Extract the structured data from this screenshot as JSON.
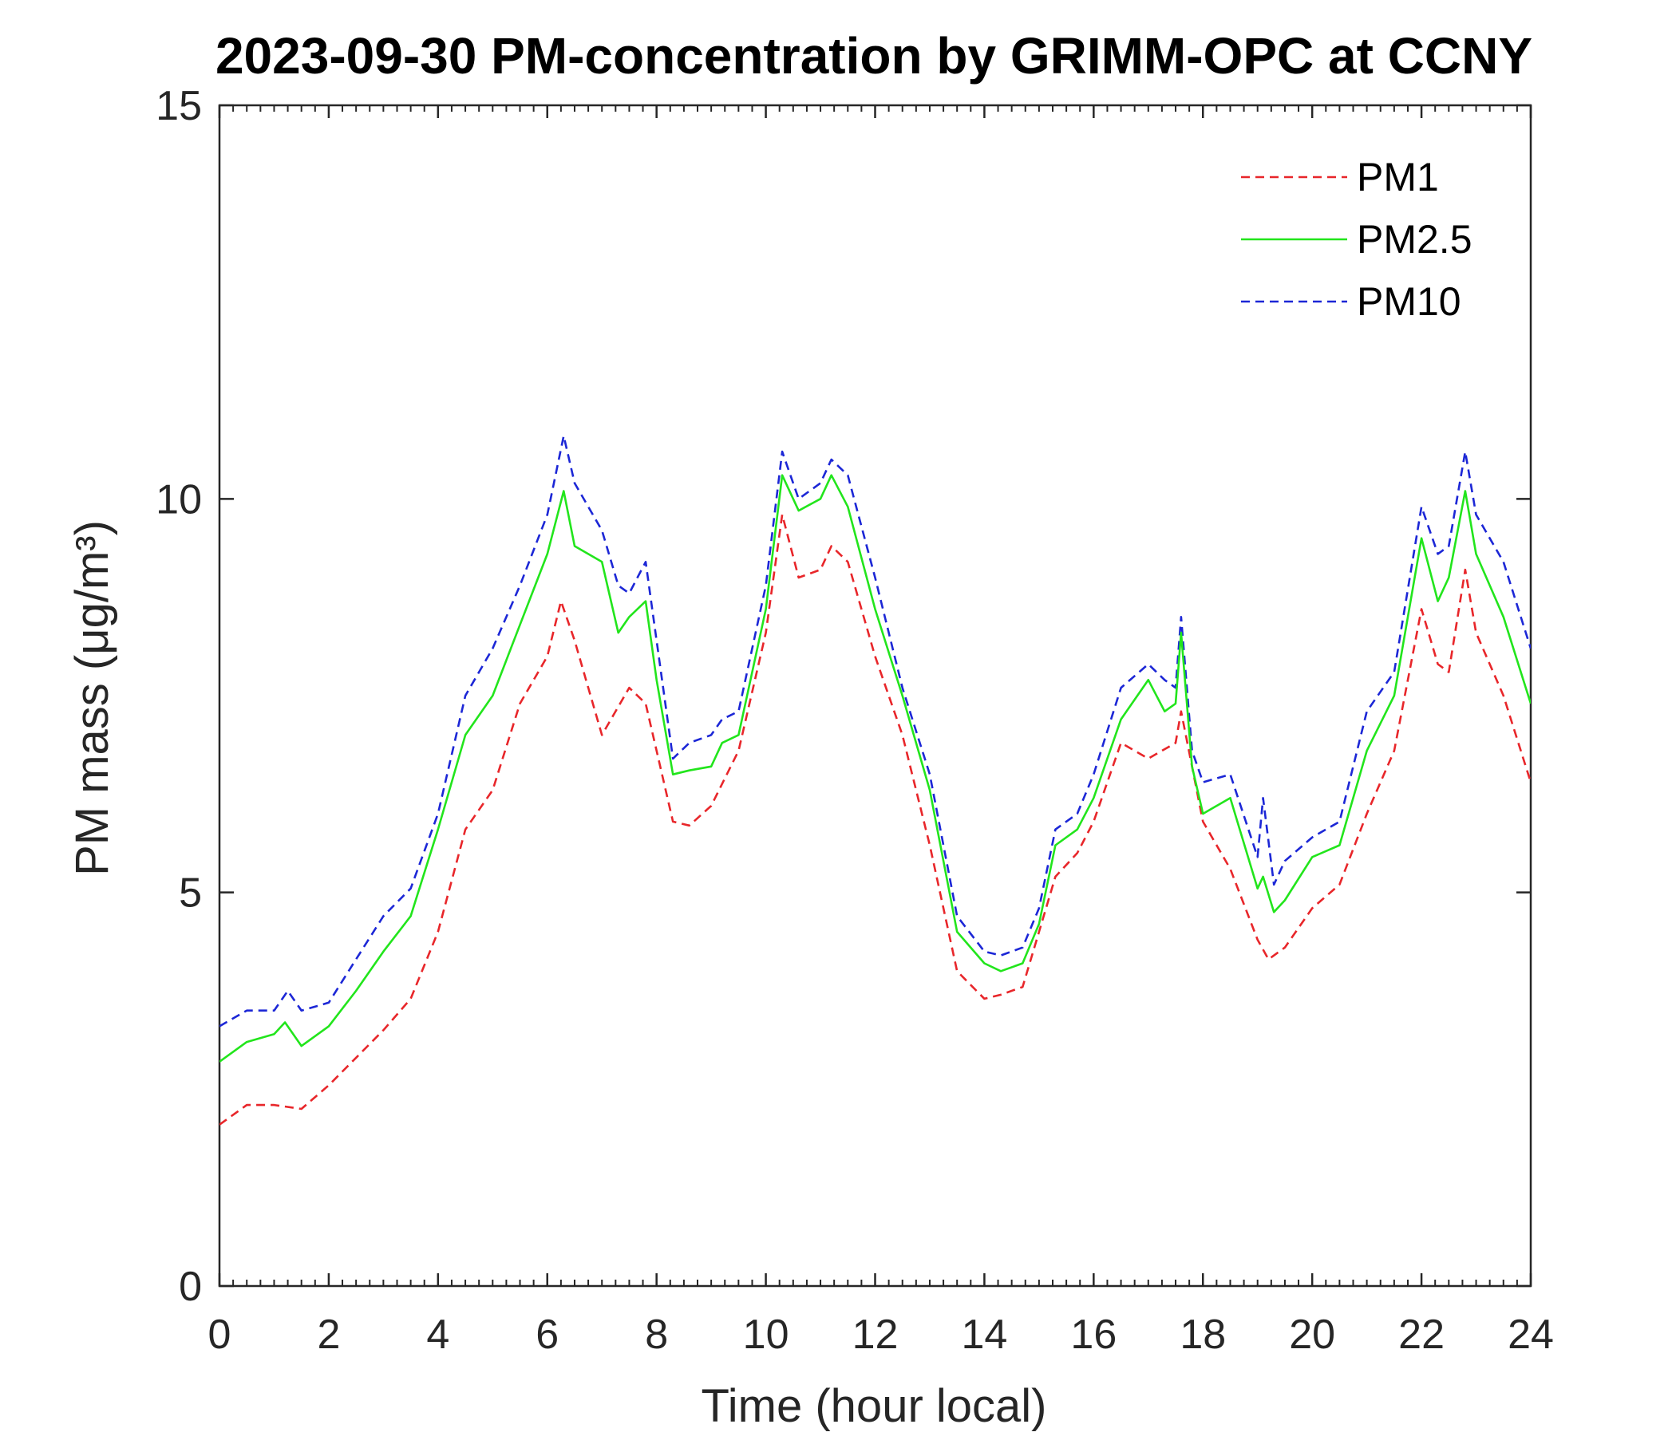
{
  "chart_data": {
    "type": "line",
    "title": "2023-09-30 PM-concentration by GRIMM-OPC at CCNY",
    "xlabel": "Time (hour local)",
    "ylabel": "PM mass (μg/m³)",
    "xlim": [
      0,
      24
    ],
    "ylim": [
      0,
      15
    ],
    "xticks": [
      0,
      2,
      4,
      6,
      8,
      10,
      12,
      14,
      16,
      18,
      20,
      22,
      24
    ],
    "yticks": [
      0,
      5,
      10,
      15
    ],
    "x_minor_step": 0.25,
    "grid": false,
    "legend_position": "top-right",
    "series": [
      {
        "name": "PM1",
        "color": "#e8262a",
        "dash": "dashed",
        "x": [
          0,
          0.5,
          1,
          1.5,
          2,
          2.5,
          3,
          3.5,
          4,
          4.5,
          5,
          5.5,
          6,
          6.25,
          6.5,
          7,
          7.5,
          7.8,
          8,
          8.3,
          8.6,
          9,
          9.5,
          10,
          10.3,
          10.6,
          11,
          11.2,
          11.5,
          12,
          12.5,
          13,
          13.5,
          14,
          14.3,
          14.7,
          15,
          15.3,
          15.7,
          16,
          16.5,
          17,
          17.5,
          17.6,
          18,
          18.5,
          19,
          19.2,
          19.5,
          20,
          20.5,
          21,
          21.5,
          22,
          22.3,
          22.5,
          22.8,
          23,
          23.5,
          24
        ],
        "y": [
          2.05,
          2.3,
          2.3,
          2.25,
          2.55,
          2.9,
          3.25,
          3.65,
          4.5,
          5.8,
          6.3,
          7.4,
          8.0,
          8.7,
          8.2,
          7.0,
          7.6,
          7.4,
          6.8,
          5.9,
          5.85,
          6.1,
          6.8,
          8.3,
          9.8,
          9.0,
          9.1,
          9.4,
          9.2,
          8.0,
          7.0,
          5.6,
          4.0,
          3.65,
          3.7,
          3.8,
          4.5,
          5.2,
          5.5,
          5.9,
          6.9,
          6.7,
          6.9,
          7.3,
          5.9,
          5.3,
          4.4,
          4.15,
          4.3,
          4.8,
          5.1,
          6.0,
          6.8,
          8.6,
          7.9,
          7.8,
          9.1,
          8.3,
          7.5,
          6.4
        ]
      },
      {
        "name": "PM2.5",
        "color": "#22e51c",
        "dash": "solid",
        "x": [
          0,
          0.5,
          1,
          1.2,
          1.5,
          2,
          2.5,
          3,
          3.5,
          4,
          4.5,
          5,
          5.5,
          6,
          6.3,
          6.5,
          7,
          7.3,
          7.5,
          7.8,
          8,
          8.3,
          8.6,
          9,
          9.2,
          9.5,
          10,
          10.3,
          10.6,
          11,
          11.2,
          11.5,
          12,
          12.5,
          13,
          13.5,
          14,
          14.3,
          14.7,
          15,
          15.3,
          15.7,
          16,
          16.5,
          17,
          17.3,
          17.5,
          17.6,
          17.8,
          18,
          18.5,
          19,
          19.1,
          19.3,
          19.5,
          20,
          20.5,
          21,
          21.5,
          22,
          22.3,
          22.5,
          22.8,
          23,
          23.5,
          24
        ],
        "y": [
          2.85,
          3.1,
          3.2,
          3.35,
          3.05,
          3.3,
          3.75,
          4.25,
          4.7,
          5.8,
          7.0,
          7.5,
          8.4,
          9.3,
          10.1,
          9.4,
          9.2,
          8.3,
          8.5,
          8.7,
          7.7,
          6.5,
          6.55,
          6.6,
          6.9,
          7.0,
          8.6,
          10.3,
          9.85,
          10.0,
          10.3,
          9.9,
          8.6,
          7.5,
          6.3,
          4.5,
          4.1,
          4.0,
          4.1,
          4.6,
          5.6,
          5.8,
          6.2,
          7.2,
          7.7,
          7.3,
          7.4,
          8.3,
          6.6,
          6.0,
          6.2,
          5.05,
          5.2,
          4.75,
          4.9,
          5.45,
          5.6,
          6.8,
          7.5,
          9.5,
          8.7,
          9.0,
          10.1,
          9.3,
          8.5,
          7.4
        ]
      },
      {
        "name": "PM10",
        "color": "#1c27d6",
        "dash": "dashed",
        "x": [
          0,
          0.5,
          1,
          1.25,
          1.5,
          2,
          2.5,
          3,
          3.5,
          4,
          4.5,
          5,
          5.5,
          6,
          6.3,
          6.5,
          7,
          7.3,
          7.5,
          7.8,
          8,
          8.3,
          8.6,
          9,
          9.2,
          9.5,
          10,
          10.3,
          10.6,
          11,
          11.2,
          11.5,
          12,
          12.5,
          13,
          13.5,
          14,
          14.3,
          14.7,
          15,
          15.3,
          15.7,
          16,
          16.5,
          17,
          17.3,
          17.5,
          17.6,
          17.8,
          18,
          18.5,
          19,
          19.1,
          19.3,
          19.5,
          20,
          20.5,
          21,
          21.5,
          22,
          22.3,
          22.5,
          22.8,
          23,
          23.5,
          24
        ],
        "y": [
          3.3,
          3.5,
          3.5,
          3.75,
          3.5,
          3.6,
          4.15,
          4.7,
          5.05,
          6.0,
          7.5,
          8.1,
          8.9,
          9.8,
          10.8,
          10.2,
          9.6,
          8.9,
          8.8,
          9.2,
          8.2,
          6.7,
          6.9,
          7.0,
          7.2,
          7.3,
          8.9,
          10.6,
          10.0,
          10.2,
          10.5,
          10.3,
          9.0,
          7.6,
          6.5,
          4.7,
          4.25,
          4.2,
          4.3,
          4.8,
          5.8,
          6.0,
          6.5,
          7.6,
          7.9,
          7.7,
          7.6,
          8.5,
          6.8,
          6.4,
          6.5,
          5.45,
          6.2,
          5.1,
          5.4,
          5.7,
          5.9,
          7.3,
          7.8,
          9.9,
          9.3,
          9.4,
          10.6,
          9.8,
          9.2,
          8.1
        ]
      }
    ]
  }
}
